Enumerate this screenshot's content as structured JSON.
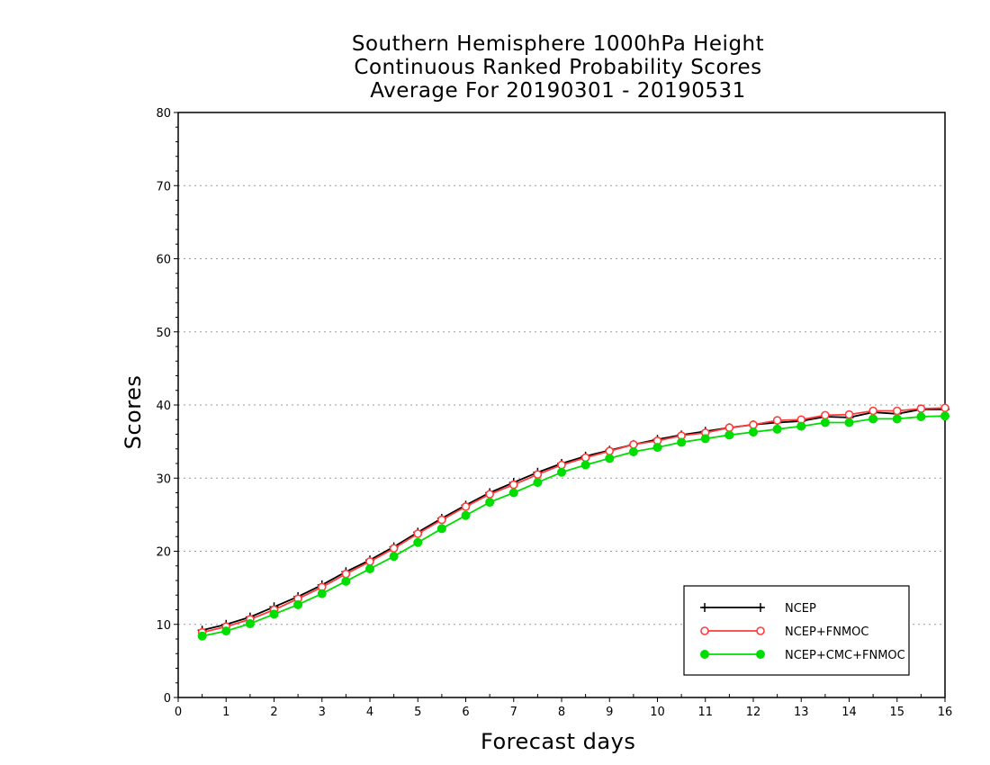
{
  "chart_data": {
    "type": "line",
    "title_lines": [
      "Southern Hemisphere 1000hPa Height",
      "Continuous Ranked Probability Scores",
      "Average For 20190301 - 20190531"
    ],
    "xlabel": "Forecast days",
    "ylabel": "Scores",
    "xlim": [
      0,
      16
    ],
    "ylim": [
      0,
      80
    ],
    "xticks": [
      "0",
      "1",
      "2",
      "3",
      "4",
      "5",
      "6",
      "7",
      "8",
      "9",
      "10",
      "11",
      "12",
      "13",
      "14",
      "15",
      "16"
    ],
    "yticks": [
      "0",
      "10",
      "20",
      "30",
      "40",
      "50",
      "60",
      "70",
      "80"
    ],
    "grid": "horizontal dotted",
    "legend_position": "bottom-right",
    "x": [
      0.5,
      1,
      1.5,
      2,
      2.5,
      3,
      3.5,
      4,
      4.5,
      5,
      5.5,
      6,
      6.5,
      7,
      7.5,
      8,
      8.5,
      9,
      9.5,
      10,
      10.5,
      11,
      11.5,
      12,
      12.5,
      13,
      13.5,
      14,
      14.5,
      15,
      15.5,
      16
    ],
    "series": [
      {
        "name": "NCEP",
        "color": "#000000",
        "marker": "plus",
        "values": [
          9.2,
          10.0,
          11.0,
          12.4,
          13.8,
          15.4,
          17.2,
          18.8,
          20.6,
          22.6,
          24.5,
          26.3,
          28.0,
          29.4,
          30.8,
          32.0,
          33.0,
          33.8,
          34.6,
          35.3,
          35.9,
          36.4,
          36.9,
          37.3,
          37.6,
          37.8,
          38.4,
          38.3,
          39.0,
          38.8,
          39.4,
          39.4
        ]
      },
      {
        "name": "NCEP+FNMOC",
        "color": "#ff3b3b",
        "marker": "open-circle",
        "values": [
          8.9,
          9.7,
          10.7,
          12.0,
          13.5,
          15.1,
          16.9,
          18.6,
          20.4,
          22.4,
          24.3,
          26.1,
          27.8,
          29.1,
          30.5,
          31.8,
          32.8,
          33.7,
          34.6,
          35.1,
          35.8,
          36.2,
          36.9,
          37.3,
          37.9,
          38.0,
          38.6,
          38.7,
          39.2,
          39.2,
          39.5,
          39.6
        ]
      },
      {
        "name": "NCEP+CMC+FNMOC",
        "color": "#00dd00",
        "marker": "filled-circle",
        "values": [
          8.4,
          9.1,
          10.1,
          11.4,
          12.7,
          14.2,
          15.9,
          17.6,
          19.3,
          21.2,
          23.1,
          24.9,
          26.7,
          28.0,
          29.4,
          30.8,
          31.8,
          32.7,
          33.6,
          34.2,
          34.9,
          35.4,
          35.9,
          36.3,
          36.7,
          37.1,
          37.6,
          37.6,
          38.1,
          38.1,
          38.4,
          38.5
        ]
      }
    ]
  }
}
